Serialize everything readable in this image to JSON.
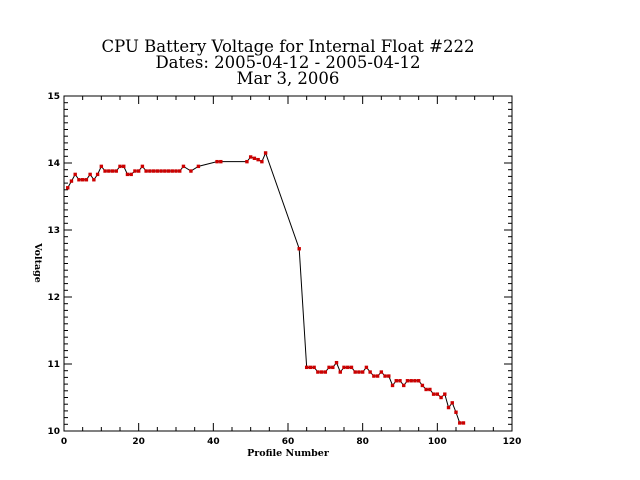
{
  "chart_data": {
    "type": "line",
    "title_lines": [
      "CPU Battery Voltage for Internal Float #222",
      "Dates:  2005-04-12 -  2005-04-12",
      "Mar  3, 2006"
    ],
    "xlabel": "Profile Number",
    "ylabel": "Voltage",
    "xlim": [
      0,
      120
    ],
    "ylim": [
      10,
      15
    ],
    "xticks": [
      0,
      20,
      40,
      60,
      80,
      100,
      120
    ],
    "yticks": [
      10,
      11,
      12,
      13,
      14,
      15
    ],
    "grid": false,
    "legend": "none",
    "colors": {
      "line": "#000000",
      "marker": "#cc0000"
    },
    "series": [
      {
        "x": [
          1,
          2,
          3,
          4,
          5,
          6,
          7,
          8,
          9,
          10,
          11,
          12,
          13,
          14,
          15,
          16,
          17,
          18,
          19,
          20,
          21,
          22,
          23,
          24,
          25,
          26,
          27,
          28,
          29,
          30,
          31,
          32,
          34,
          36,
          41,
          42,
          49,
          50,
          51,
          52,
          53,
          54,
          63,
          65,
          66,
          67,
          68,
          69,
          70,
          71,
          72,
          73,
          74,
          75,
          76,
          77,
          78,
          79,
          80,
          81,
          82,
          83,
          84,
          85,
          86,
          87,
          88,
          89,
          90,
          91,
          92,
          93,
          94,
          95,
          96,
          97,
          98,
          99,
          100,
          101,
          102,
          103,
          104,
          105,
          106,
          107
        ],
        "y": [
          13.63,
          13.73,
          13.83,
          13.75,
          13.75,
          13.75,
          13.83,
          13.75,
          13.83,
          13.95,
          13.88,
          13.88,
          13.88,
          13.88,
          13.95,
          13.95,
          13.83,
          13.83,
          13.88,
          13.88,
          13.95,
          13.88,
          13.88,
          13.88,
          13.88,
          13.88,
          13.88,
          13.88,
          13.88,
          13.88,
          13.88,
          13.95,
          13.88,
          13.95,
          14.02,
          14.02,
          14.02,
          14.09,
          14.07,
          14.05,
          14.02,
          14.15,
          12.72,
          10.95,
          10.95,
          10.95,
          10.88,
          10.88,
          10.88,
          10.95,
          10.95,
          11.02,
          10.88,
          10.95,
          10.95,
          10.95,
          10.88,
          10.88,
          10.88,
          10.95,
          10.88,
          10.82,
          10.82,
          10.88,
          10.82,
          10.82,
          10.68,
          10.75,
          10.75,
          10.68,
          10.75,
          10.75,
          10.75,
          10.75,
          10.68,
          10.62,
          10.62,
          10.55,
          10.55,
          10.5,
          10.55,
          10.35,
          10.42,
          10.28,
          10.12,
          10.12
        ]
      }
    ]
  }
}
